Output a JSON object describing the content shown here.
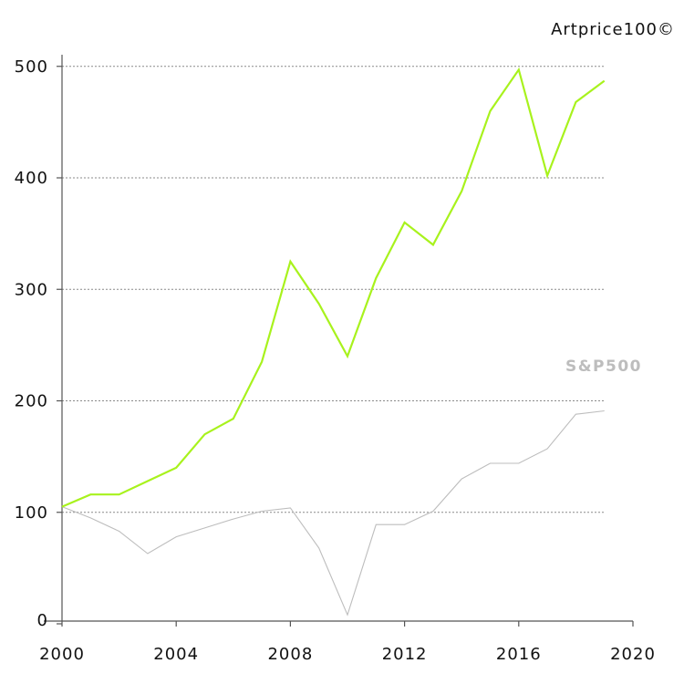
{
  "chart_data": {
    "type": "line",
    "title": "",
    "xlabel": "",
    "ylabel": "",
    "x": [
      2000,
      2001,
      2002,
      2003,
      2004,
      2005,
      2006,
      2007,
      2008,
      2009,
      2010,
      2011,
      2012,
      2013,
      2014,
      2015,
      2016,
      2017,
      2018,
      2019
    ],
    "series": [
      {
        "name": "Artprice100©",
        "color": "#a8f21d",
        "values": [
          105,
          116,
          116,
          128,
          140,
          170,
          184,
          235,
          325,
          287,
          240,
          310,
          360,
          340,
          388,
          460,
          497,
          402,
          468,
          487
        ]
      },
      {
        "name": "S&P500",
        "color": "#bdbdbd",
        "values": [
          105,
          95,
          83,
          63,
          78,
          86,
          94,
          101,
          104,
          68,
          8,
          89,
          89,
          101,
          130,
          144,
          144,
          157,
          188,
          191
        ]
      }
    ],
    "xticks": [
      "2000",
      "2004",
      "2008",
      "2012",
      "2016",
      "2020"
    ],
    "yticks": [
      "0",
      "100",
      "200",
      "300",
      "400",
      "500"
    ],
    "xlim": [
      2000,
      2020
    ],
    "ylim": [
      0,
      500
    ],
    "grid": "horizontal dotted",
    "legend": "top-right"
  }
}
